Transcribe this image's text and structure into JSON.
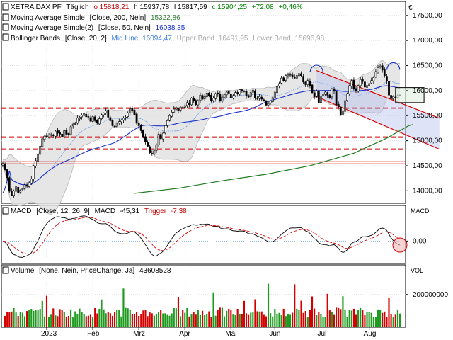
{
  "chart_data": {
    "type": "candlestick",
    "currency": "€",
    "x_ticks": [
      "2023",
      "Feb",
      "Mrz",
      "Apr",
      "Mai",
      "Jun",
      "Jul",
      "Aug"
    ],
    "price_panel": {
      "ticks": [
        14000,
        14500,
        15000,
        15500,
        16000,
        16500,
        17000,
        17500
      ],
      "tick_labels": [
        "14000,00",
        "14500,00",
        "15000,00",
        "15500,00",
        "16000,00",
        "16500,00",
        "17000,00",
        "17500,00"
      ],
      "ylim": [
        13750,
        17780
      ],
      "header": {
        "name": "XETRA DAX PF",
        "period": "Täglich",
        "open": "o 15818,21",
        "high": "h 15937,78",
        "low": "l 15817,59",
        "close": "c 15904,25",
        "change": "+72,08",
        "change_pct": "+0,46%"
      },
      "legend": [
        {
          "label": "Moving Average Simple",
          "params": "[Close, 200, Nein]",
          "value": "15322,86",
          "color": "#2e7d32"
        },
        {
          "label": "Moving Average Simple(2)",
          "params": "[Close, 50, Nein]",
          "value": "16038,35",
          "color": "#1a33c8"
        },
        {
          "label": "Bollinger Bands",
          "params": "[Close, 20, 2]",
          "mid_label": "Mid Line",
          "mid_value": "16094,47",
          "upper_label": "Upper Band",
          "upper_value": "16491,95",
          "lower_label": "Lower Band",
          "lower_value": "15696,98",
          "color": "#999999"
        }
      ],
      "horizontal_lines": [
        15650,
        15070,
        14830,
        14560
      ],
      "closes": [
        14550,
        14420,
        14260,
        13990,
        13910,
        14000,
        14080,
        13960,
        14010,
        14040,
        14120,
        14090,
        14160,
        14240,
        14500,
        14600,
        14720,
        14890,
        15040,
        15090,
        15080,
        15110,
        15120,
        15100,
        15190,
        15150,
        15130,
        15080,
        15200,
        15130,
        15120,
        15280,
        15330,
        15340,
        15450,
        15470,
        15510,
        15540,
        15480,
        15470,
        15390,
        15480,
        15400,
        15350,
        15440,
        15520,
        15550,
        15600,
        15470,
        15400,
        15300,
        15280,
        15350,
        15380,
        15410,
        15450,
        15470,
        15550,
        15640,
        15600,
        15520,
        15350,
        15300,
        15200,
        15080,
        14970,
        14890,
        14760,
        14740,
        14800,
        14920,
        15130,
        15040,
        15150,
        15300,
        15400,
        15500,
        15570,
        15630,
        15660,
        15600,
        15670,
        15660,
        15700,
        15760,
        15720,
        15850,
        15790,
        15720,
        15800,
        15910,
        15830,
        15880,
        15950,
        15900,
        15800,
        15850,
        15940,
        15930,
        15800,
        15870,
        15920,
        15970,
        15950,
        15850,
        15900,
        15960,
        15940,
        16020,
        16000,
        15990,
        15890,
        15870,
        15960,
        16010,
        15860,
        15850,
        15880,
        15830,
        15800,
        15710,
        15740,
        15790,
        15860,
        15970,
        16080,
        16140,
        16250,
        16200,
        16300,
        16320,
        16320,
        16280,
        16250,
        16300,
        16340,
        16300,
        16170,
        16120,
        16200,
        16100,
        15960,
        15870,
        15990,
        15760,
        15890,
        15930,
        15970,
        15910,
        15860,
        16030,
        15990,
        15720,
        15680,
        15520,
        15600,
        15800,
        15940,
        16100,
        16200,
        16030,
        16000,
        16100,
        16220,
        16180,
        16070,
        16100,
        16140,
        16200,
        16260,
        16380,
        16460,
        16490,
        16410,
        16300,
        16190,
        15910,
        15840,
        15880,
        15860,
        15900,
        15910
      ],
      "sma200": [
        {
          "i": 60,
          "v": 13950
        },
        {
          "i": 80,
          "v": 14050
        },
        {
          "i": 100,
          "v": 14200
        },
        {
          "i": 120,
          "v": 14330
        },
        {
          "i": 140,
          "v": 14500
        },
        {
          "i": 160,
          "v": 14750
        },
        {
          "i": 175,
          "v": 15050
        },
        {
          "i": 185,
          "v": 15300
        },
        {
          "i": 187,
          "v": 15323
        }
      ],
      "sma50_start": [
        13950,
        14050,
        14200,
        14400
      ],
      "channel": {
        "upper": [
          {
            "i": 143,
            "v": 16400
          },
          {
            "i": 199,
            "v": 15450
          }
        ],
        "lower": [
          {
            "i": 143,
            "v": 15880
          },
          {
            "i": 199,
            "v": 14830
          }
        ]
      },
      "markers": [
        {
          "type": "arc",
          "i": 143,
          "v": 16450
        },
        {
          "type": "arc",
          "i": 178,
          "v": 16500
        },
        {
          "type": "rect",
          "i0": 179,
          "i1": 192,
          "v0": 15760,
          "v1": 16060
        }
      ]
    },
    "macd_panel": {
      "header": {
        "label": "MACD",
        "params": "[Close, 12, 26, 9]",
        "macd_label": "MACD",
        "macd_value": "-45,31",
        "trigger_label": "Trigger",
        "trigger_value": "-7,38"
      },
      "section_label": "MACD",
      "ticks": [
        0
      ],
      "tick_labels": [
        "0,00"
      ]
    },
    "volume_panel": {
      "header": {
        "label": "Volume",
        "params": "[None, Nein, PriceChange, Ja]",
        "value": "43608528"
      },
      "section_label": "VOL",
      "ticks": [
        200000000
      ],
      "tick_labels": [
        "200000000"
      ]
    }
  }
}
